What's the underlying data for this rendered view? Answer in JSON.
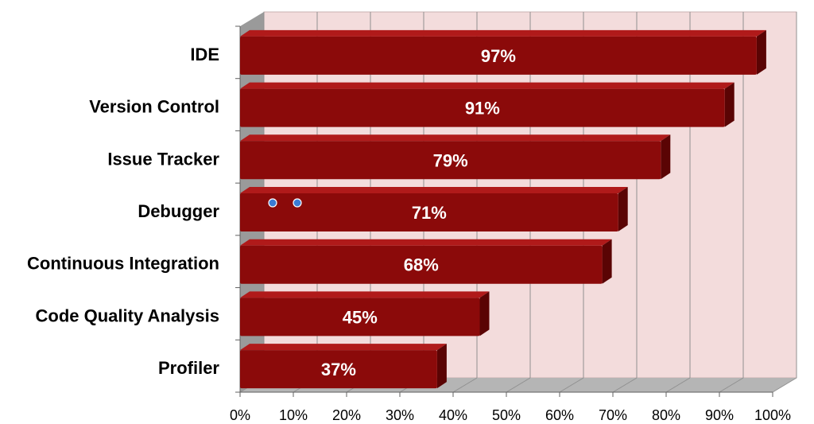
{
  "chart_data": {
    "type": "bar",
    "orientation": "horizontal",
    "title": "",
    "xlabel": "",
    "ylabel": "",
    "categories": [
      "IDE",
      "Version Control",
      "Issue Tracker",
      "Debugger",
      "Continuous Integration",
      "Code Quality Analysis",
      "Profiler"
    ],
    "values": [
      97,
      91,
      79,
      71,
      68,
      45,
      37
    ],
    "value_labels": [
      "97%",
      "91%",
      "79%",
      "71%",
      "68%",
      "45%",
      "37%"
    ],
    "xlim": [
      0,
      100
    ],
    "x_ticks": [
      "0%",
      "10%",
      "20%",
      "30%",
      "40%",
      "50%",
      "60%",
      "70%",
      "80%",
      "90%",
      "100%"
    ],
    "grid": true,
    "legend": "none",
    "style": "3d",
    "colors": {
      "bar_face": "#8b0a0a",
      "bar_top": "#b01a1a",
      "bar_side": "#5a0404",
      "plot_back": "#f3dcdc",
      "plot_side": "#9a9a9a",
      "plot_floor": "#b5b5b5",
      "gridline": "#909090",
      "marker": "#3a7bd5"
    }
  }
}
